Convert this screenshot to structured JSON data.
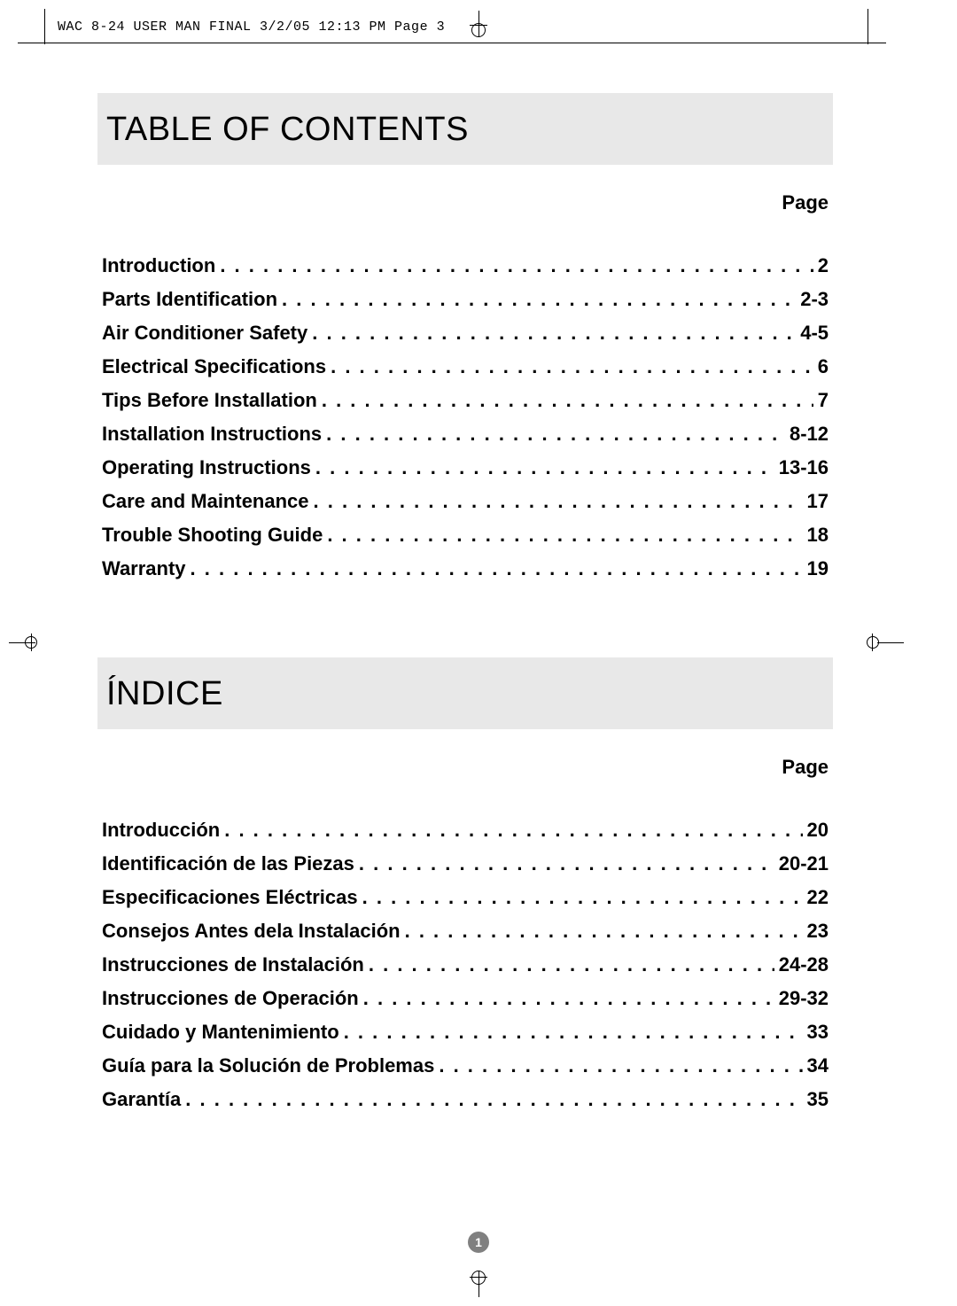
{
  "header": {
    "printer_info": "WAC 8-24 USER MAN FINAL  3/2/05  12:13 PM  Page 3"
  },
  "page_number": "1",
  "sections": [
    {
      "title": "TABLE OF CONTENTS",
      "page_label": "Page",
      "items": [
        {
          "title": "Introduction",
          "page": "2"
        },
        {
          "title": "Parts Identification",
          "page": "2-3"
        },
        {
          "title": "Air Conditioner Safety",
          "page": "4-5"
        },
        {
          "title": "Electrical Specifications",
          "page": "6"
        },
        {
          "title": "Tips Before Installation",
          "page": "7"
        },
        {
          "title": "Installation Instructions",
          "page": "8-12"
        },
        {
          "title": "Operating Instructions",
          "page": "13-16"
        },
        {
          "title": "Care and Maintenance",
          "page": "17"
        },
        {
          "title": "Trouble Shooting Guide",
          "page": "18"
        },
        {
          "title": "Warranty",
          "page": "19"
        }
      ]
    },
    {
      "title": "ÍNDICE",
      "page_label": "Page",
      "items": [
        {
          "title": "Introducción",
          "page": "20"
        },
        {
          "title": "Identificación de las Piezas",
          "page": "20-21"
        },
        {
          "title": "Especificaciones Eléctricas",
          "page": "22"
        },
        {
          "title": "Consejos Antes dela Instalación",
          "page": "23"
        },
        {
          "title": "Instrucciones de Instalación",
          "page": "24-28"
        },
        {
          "title": "Instrucciones de Operación",
          "page": "29-32"
        },
        {
          "title": "Cuidado y Mantenimiento",
          "page": "33"
        },
        {
          "title": "Guía para la Solución de Problemas",
          "page": "34"
        },
        {
          "title": "Garantía",
          "page": "35"
        }
      ]
    }
  ],
  "colors": {
    "header_bg": "#e8e8e8",
    "page_badge_bg": "#808080",
    "text": "#000000"
  },
  "typography": {
    "heading_font_size": 38,
    "body_font_size": 22,
    "header_mono_font_size": 15
  }
}
